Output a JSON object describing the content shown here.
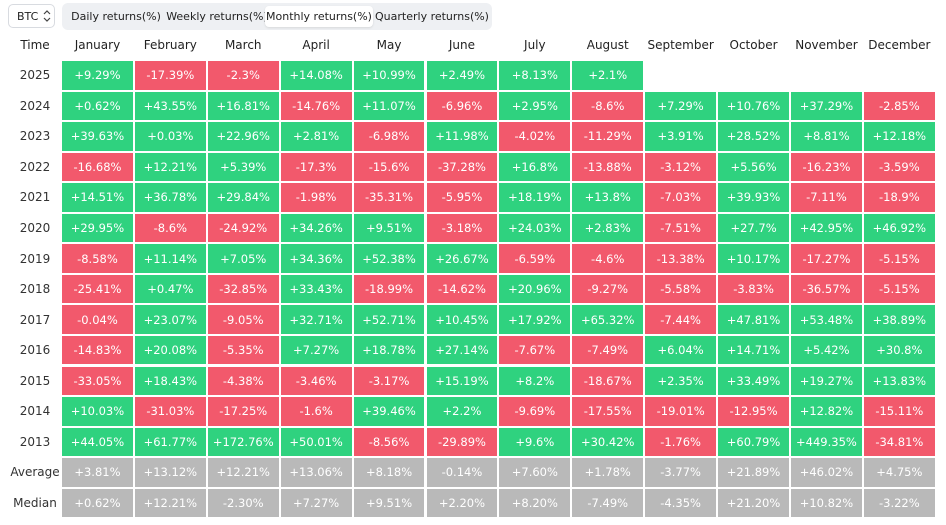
{
  "selector": "BTC",
  "tabs": {
    "items": [
      "Daily returns(%)",
      "Weekly returns(%)",
      "Monthly returns(%)",
      "Quarterly returns(%)"
    ],
    "active": 2
  },
  "colors": {
    "positive": "#2fd27f",
    "negative": "#f2596c",
    "summary": "#b9b9b9"
  },
  "table": {
    "header": [
      "Time",
      "January",
      "February",
      "March",
      "April",
      "May",
      "June",
      "July",
      "August",
      "September",
      "October",
      "November",
      "December"
    ],
    "rows": [
      [
        "2025",
        "+9.29%",
        "-17.39%",
        "-2.3%",
        "+14.08%",
        "+10.99%",
        "+2.49%",
        "+8.13%",
        "+2.1%"
      ],
      [
        "2024",
        "+0.62%",
        "+43.55%",
        "+16.81%",
        "-14.76%",
        "+11.07%",
        "-6.96%",
        "+2.95%",
        "-8.6%",
        "+7.29%",
        "+10.76%",
        "+37.29%",
        "-2.85%"
      ],
      [
        "2023",
        "+39.63%",
        "+0.03%",
        "+22.96%",
        "+2.81%",
        "-6.98%",
        "+11.98%",
        "-4.02%",
        "-11.29%",
        "+3.91%",
        "+28.52%",
        "+8.81%",
        "+12.18%"
      ],
      [
        "2022",
        "-16.68%",
        "+12.21%",
        "+5.39%",
        "-17.3%",
        "-15.6%",
        "-37.28%",
        "+16.8%",
        "-13.88%",
        "-3.12%",
        "+5.56%",
        "-16.23%",
        "-3.59%"
      ],
      [
        "2021",
        "+14.51%",
        "+36.78%",
        "+29.84%",
        "-1.98%",
        "-35.31%",
        "-5.95%",
        "+18.19%",
        "+13.8%",
        "-7.03%",
        "+39.93%",
        "-7.11%",
        "-18.9%"
      ],
      [
        "2020",
        "+29.95%",
        "-8.6%",
        "-24.92%",
        "+34.26%",
        "+9.51%",
        "-3.18%",
        "+24.03%",
        "+2.83%",
        "-7.51%",
        "+27.7%",
        "+42.95%",
        "+46.92%"
      ],
      [
        "2019",
        "-8.58%",
        "+11.14%",
        "+7.05%",
        "+34.36%",
        "+52.38%",
        "+26.67%",
        "-6.59%",
        "-4.6%",
        "-13.38%",
        "+10.17%",
        "-17.27%",
        "-5.15%"
      ],
      [
        "2018",
        "-25.41%",
        "+0.47%",
        "-32.85%",
        "+33.43%",
        "-18.99%",
        "-14.62%",
        "+20.96%",
        "-9.27%",
        "-5.58%",
        "-3.83%",
        "-36.57%",
        "-5.15%"
      ],
      [
        "2017",
        "-0.04%",
        "+23.07%",
        "-9.05%",
        "+32.71%",
        "+52.71%",
        "+10.45%",
        "+17.92%",
        "+65.32%",
        "-7.44%",
        "+47.81%",
        "+53.48%",
        "+38.89%"
      ],
      [
        "2016",
        "-14.83%",
        "+20.08%",
        "-5.35%",
        "+7.27%",
        "+18.78%",
        "+27.14%",
        "-7.67%",
        "-7.49%",
        "+6.04%",
        "+14.71%",
        "+5.42%",
        "+30.8%"
      ],
      [
        "2015",
        "-33.05%",
        "+18.43%",
        "-4.38%",
        "-3.46%",
        "-3.17%",
        "+15.19%",
        "+8.2%",
        "-18.67%",
        "+2.35%",
        "+33.49%",
        "+19.27%",
        "+13.83%"
      ],
      [
        "2014",
        "+10.03%",
        "-31.03%",
        "-17.25%",
        "-1.6%",
        "+39.46%",
        "+2.2%",
        "-9.69%",
        "-17.55%",
        "-19.01%",
        "-12.95%",
        "+12.82%",
        "-15.11%"
      ],
      [
        "2013",
        "+44.05%",
        "+61.77%",
        "+172.76%",
        "+50.01%",
        "-8.56%",
        "-29.89%",
        "+9.6%",
        "+30.42%",
        "-1.76%",
        "+60.79%",
        "+449.35%",
        "-34.81%"
      ]
    ],
    "summary_rows": [
      [
        "Average",
        "+3.81%",
        "+13.12%",
        "+12.21%",
        "+13.06%",
        "+8.18%",
        "-0.14%",
        "+7.60%",
        "+1.78%",
        "-3.77%",
        "+21.89%",
        "+46.02%",
        "+4.75%"
      ],
      [
        "Median",
        "+0.62%",
        "+12.21%",
        "-2.30%",
        "+7.27%",
        "+9.51%",
        "+2.20%",
        "+8.20%",
        "-7.49%",
        "-4.35%",
        "+21.20%",
        "+10.82%",
        "-3.22%"
      ]
    ]
  }
}
